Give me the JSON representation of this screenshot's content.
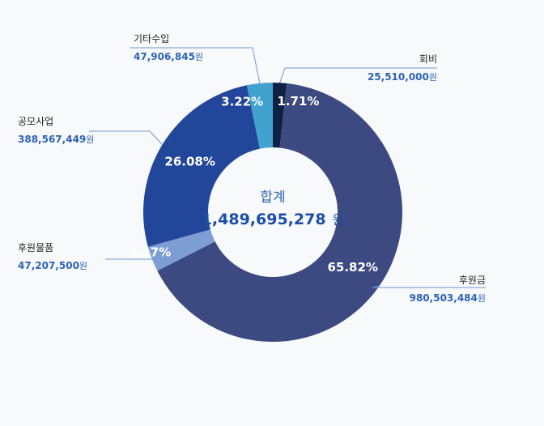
{
  "chart_data": {
    "type": "pie",
    "donut": true,
    "total": {
      "label": "합계",
      "value": "1,489,695,278",
      "unit": "원"
    },
    "slices": [
      {
        "category": "회비",
        "amount": "25,510,000",
        "unit": "원",
        "percent": 1.71,
        "percent_label": "1.71%",
        "color": "#0f2142"
      },
      {
        "category": "후원금",
        "amount": "980,503,484",
        "unit": "원",
        "percent": 65.82,
        "percent_label": "65.82%",
        "color": "#3c4a81"
      },
      {
        "category": "후원물품",
        "amount": "47,207,500",
        "unit": "원",
        "percent": 3.17,
        "percent_label": "3.17%",
        "color": "#7e9ed3"
      },
      {
        "category": "공모사업",
        "amount": "388,567,449",
        "unit": "원",
        "percent": 26.08,
        "percent_label": "26.08%",
        "color": "#22469a"
      },
      {
        "category": "기타수입",
        "amount": "47,906,845",
        "unit": "원",
        "percent": 3.22,
        "percent_label": "3.22%",
        "color": "#42a2cf"
      }
    ],
    "leader_line_color": "#6f96d2"
  }
}
